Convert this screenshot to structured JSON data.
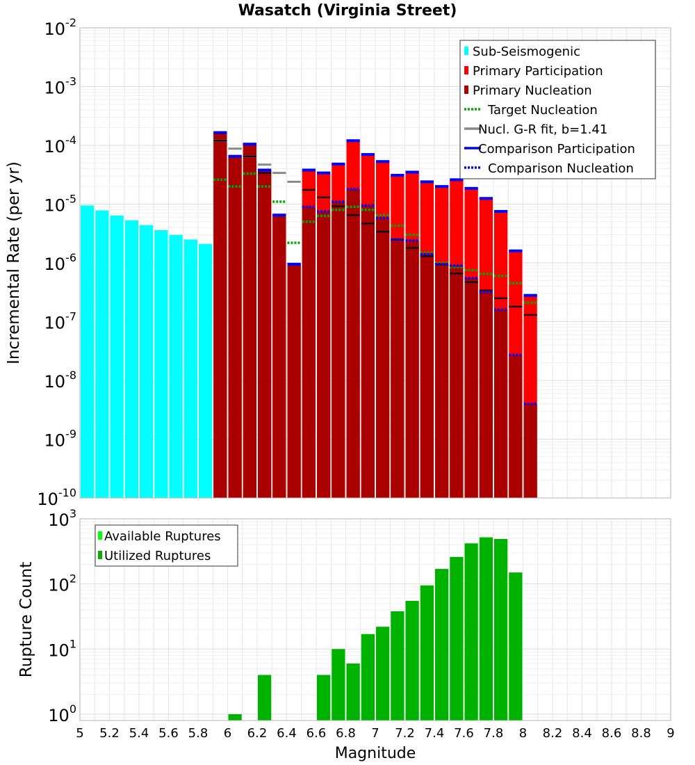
{
  "chart_data": [
    {
      "type": "bar",
      "title": "Wasatch (Virginia Street)",
      "ylabel": "Incremental Rate (per yr)",
      "xlabel": "",
      "xlim": [
        5,
        9
      ],
      "ylim": [
        1e-10,
        0.01
      ],
      "yscale": "log",
      "grid": true,
      "legend_position": "top-right",
      "y_tick_labels": [
        {
          "base": "10",
          "exp": "-10"
        },
        {
          "base": "10",
          "exp": "-9"
        },
        {
          "base": "10",
          "exp": "-8"
        },
        {
          "base": "10",
          "exp": "-7"
        },
        {
          "base": "10",
          "exp": "-6"
        },
        {
          "base": "10",
          "exp": "-5"
        },
        {
          "base": "10",
          "exp": "-4"
        },
        {
          "base": "10",
          "exp": "-3"
        },
        {
          "base": "10",
          "exp": "-2"
        }
      ],
      "legend": [
        {
          "label": "Sub-Seismogenic",
          "style": "box",
          "color": "#00FFFF"
        },
        {
          "label": "Primary Participation",
          "style": "box",
          "color": "#FF0000"
        },
        {
          "label": "Primary Nucleation",
          "style": "box",
          "color": "#AA0000"
        },
        {
          "label": "Target Nucleation",
          "style": "dotted",
          "color": "#00AA00"
        },
        {
          "label": "Nucl. G-R fit, b=1.41",
          "style": "solid",
          "color": "#888888"
        },
        {
          "label": "Comparison Participation",
          "style": "solid",
          "color": "#0000FF"
        },
        {
          "label": "Comparison Nucleation",
          "style": "dotted",
          "color": "#0000FF"
        }
      ],
      "series": [
        {
          "name": "Sub-Seismogenic",
          "color": "#00FFFF",
          "x": [
            5.05,
            5.15,
            5.25,
            5.35,
            5.45,
            5.55,
            5.65,
            5.75,
            5.85
          ],
          "values": [
            9.5e-06,
            7.8e-06,
            6.4e-06,
            5.3e-06,
            4.4e-06,
            3.6e-06,
            3e-06,
            2.5e-06,
            2.1e-06
          ]
        },
        {
          "name": "Primary Participation",
          "color": "#FF0000",
          "x": [
            5.95,
            6.05,
            6.15,
            6.25,
            6.35,
            6.45,
            6.55,
            6.65,
            6.75,
            6.85,
            6.95,
            7.05,
            7.15,
            7.25,
            7.35,
            7.45,
            7.55,
            7.65,
            7.75,
            7.85,
            7.95,
            8.05
          ],
          "values": [
            0.000165,
            6.5e-05,
            0.000105,
            3.8e-05,
            6.5e-06,
            9.5e-07,
            3.8e-05,
            3.4e-05,
            4.8e-05,
            0.00012,
            7e-05,
            5.3e-05,
            3.1e-05,
            3.5e-05,
            2.4e-05,
            2e-05,
            2.6e-05,
            1.85e-05,
            1.25e-05,
            7.5e-06,
            1.6e-06,
            2.8e-07
          ]
        },
        {
          "name": "Primary Nucleation",
          "color": "#AA0000",
          "x": [
            5.95,
            6.05,
            6.15,
            6.25,
            6.35,
            6.45,
            6.55,
            6.65,
            6.75,
            6.85,
            6.95,
            7.05,
            7.15,
            7.25,
            7.35,
            7.45,
            7.55,
            7.65,
            7.75,
            7.85,
            7.95,
            8.05
          ],
          "values": [
            0.000165,
            6.5e-05,
            0.000105,
            3.8e-05,
            6.5e-06,
            9.5e-07,
            9e-06,
            7.5e-06,
            1.1e-05,
            1.8e-05,
            9.5e-06,
            5.8e-06,
            2.5e-06,
            2.4e-06,
            1.4e-06,
            9.5e-07,
            9e-07,
            5.5e-07,
            3.2e-07,
            1.6e-07,
            2.7e-08,
            4e-09
          ]
        },
        {
          "name": "Target Nucleation",
          "color": "#00AA00",
          "x": [
            5.95,
            6.05,
            6.15,
            6.25,
            6.35,
            6.45,
            6.55,
            6.65,
            6.75,
            6.85,
            6.95,
            7.05,
            7.15,
            7.25,
            7.35,
            7.45,
            7.55,
            7.65,
            7.75,
            7.85,
            7.95,
            8.05
          ],
          "values": [
            2.6e-05,
            2e-05,
            3.3e-05,
            2e-05,
            1.1e-05,
            2.2e-06,
            5e-06,
            6.3e-06,
            8e-06,
            9e-06,
            8e-06,
            6.5e-06,
            4.3e-06,
            3e-06,
            1.5e-06,
            1e-06,
            8.5e-07,
            7.5e-07,
            6.5e-07,
            6e-07,
            4.5e-07,
            2.1e-07
          ]
        },
        {
          "name": "Nucl. G-R fit, b=1.41",
          "color": "#888888",
          "x": [
            5.95,
            6.05,
            6.15,
            6.25,
            6.35,
            6.45
          ],
          "values": [
            0.00012,
            8.8e-05,
            6.5e-05,
            4.7e-05,
            3.4e-05,
            2.4e-05
          ]
        },
        {
          "name": "Nucl. G-R fit (black)",
          "color": "#111111",
          "x": [
            5.95,
            6.15,
            6.25,
            6.55,
            6.65,
            6.75,
            6.85,
            6.95,
            7.05,
            7.15,
            7.25,
            7.35,
            7.45,
            7.55,
            7.65,
            7.75,
            7.85,
            7.95,
            8.05
          ],
          "values": [
            0.00012,
            6.5e-05,
            3.4e-05,
            1.75e-05,
            1.3e-05,
            9.2e-06,
            6.5e-06,
            4.7e-06,
            3.4e-06,
            2.5e-06,
            1.8e-06,
            1.3e-06,
            9.3e-07,
            6.6e-07,
            4.7e-07,
            3.4e-07,
            2.5e-07,
            1.8e-07,
            1.3e-07
          ]
        }
      ]
    },
    {
      "type": "bar",
      "title": "",
      "xlabel": "Magnitude",
      "ylabel": "Rupture Count",
      "xlim": [
        5,
        9
      ],
      "ylim": [
        0.8,
        1000
      ],
      "yscale": "log",
      "grid": true,
      "legend_position": "top-left",
      "x_ticks": [
        "5",
        "5.2",
        "5.4",
        "5.6",
        "5.8",
        "6",
        "6.2",
        "6.4",
        "6.6",
        "6.8",
        "7",
        "7.2",
        "7.4",
        "7.6",
        "7.8",
        "8",
        "8.2",
        "8.4",
        "8.6",
        "8.8",
        "9"
      ],
      "y_tick_labels": [
        {
          "base": "10",
          "exp": "0"
        },
        {
          "base": "10",
          "exp": "1"
        },
        {
          "base": "10",
          "exp": "2"
        },
        {
          "base": "10",
          "exp": "3"
        }
      ],
      "legend": [
        {
          "label": "Available Ruptures",
          "style": "box",
          "color": "#00FF00"
        },
        {
          "label": "Utilized Ruptures",
          "style": "box",
          "color": "#00B200"
        }
      ],
      "series": [
        {
          "name": "Utilized Ruptures",
          "color": "#00B200",
          "x": [
            6.05,
            6.25,
            6.65,
            6.75,
            6.85,
            6.95,
            7.05,
            7.15,
            7.25,
            7.35,
            7.45,
            7.55,
            7.65,
            7.75,
            7.85,
            7.95
          ],
          "values": [
            1,
            4,
            4,
            10,
            6,
            17,
            22,
            38,
            55,
            95,
            170,
            260,
            420,
            520,
            490,
            150
          ]
        }
      ]
    }
  ]
}
